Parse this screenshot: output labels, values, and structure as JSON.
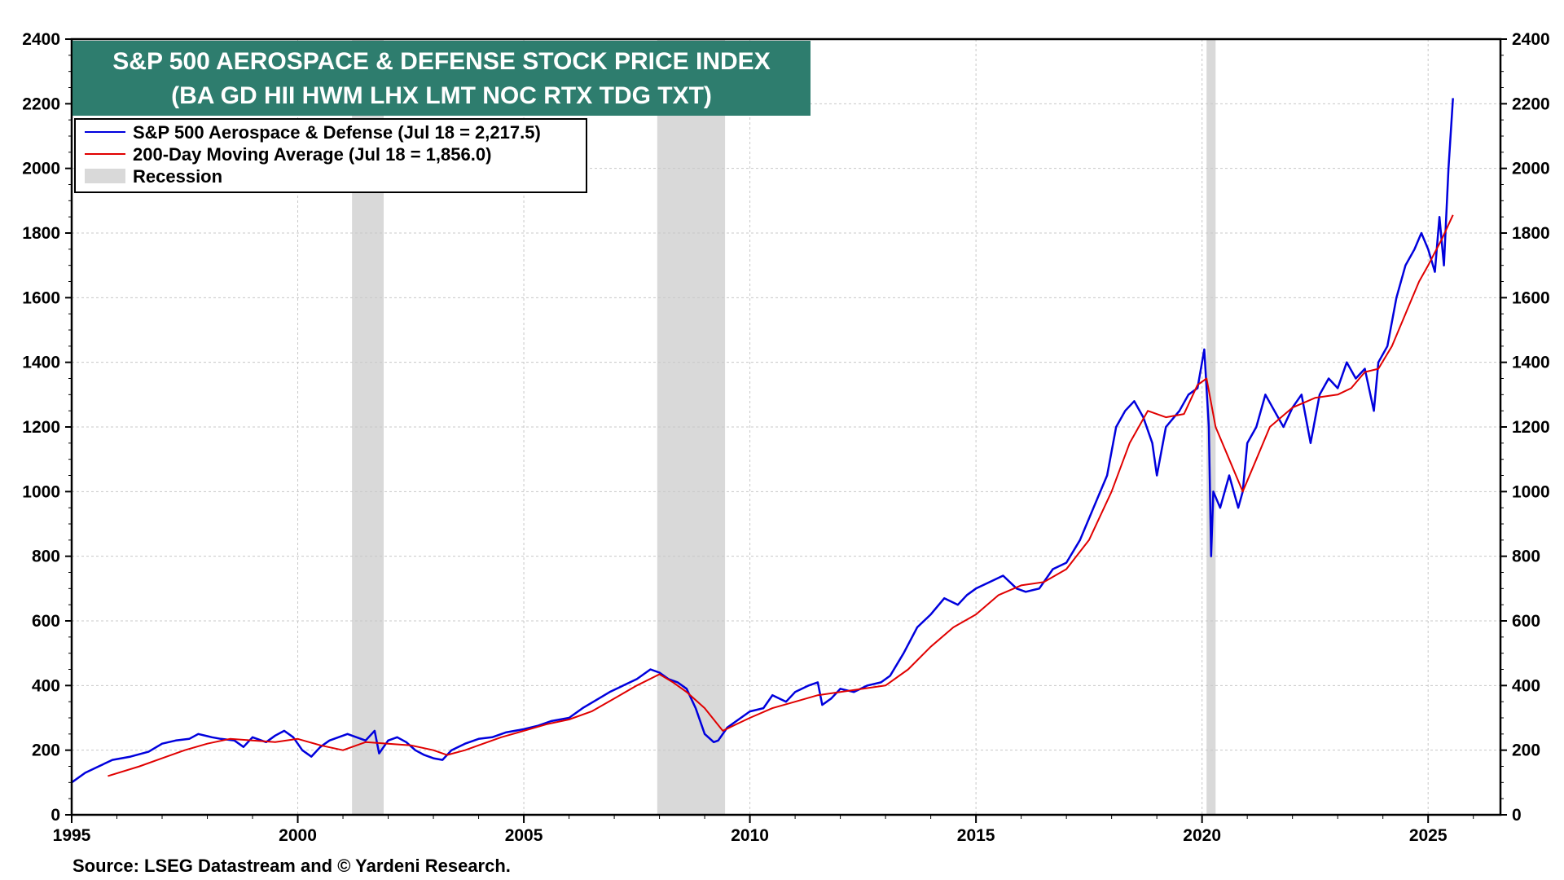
{
  "chart_data": {
    "type": "line",
    "title": "S&P 500 AEROSPACE & DEFENSE STOCK PRICE INDEX",
    "subtitle": "(BA GD HII HWM LHX LMT NOC RTX TDG TXT)",
    "source": "Source: LSEG Datastream and © Yardeni Research.",
    "xlim": [
      1995,
      2026.6
    ],
    "ylim": [
      0,
      2400
    ],
    "x_ticks": [
      "1995",
      "2000",
      "2005",
      "2010",
      "2015",
      "2020",
      "2025"
    ],
    "y_ticks": [
      "0",
      "200",
      "400",
      "600",
      "800",
      "1000",
      "1200",
      "1400",
      "1600",
      "1800",
      "2000",
      "2200",
      "2400"
    ],
    "y_axis_both_sides": true,
    "grid": true,
    "legend_position": "top-left",
    "colors": {
      "title_bg": "#2e7d6e",
      "price": "#0000dd",
      "ma": "#e00000",
      "recession": "#d9d9d9"
    },
    "legend": [
      {
        "label": "S&P 500 Aerospace & Defense (Jul 18 = 2,217.5)",
        "kind": "line",
        "color": "#0000dd"
      },
      {
        "label": "200-Day Moving Average (Jul 18 = 1,856.0)",
        "kind": "line",
        "color": "#e00000"
      },
      {
        "label": "Recession",
        "kind": "box",
        "color": "#d9d9d9"
      }
    ],
    "recessions": [
      {
        "start": 2001.2,
        "end": 2001.9
      },
      {
        "start": 2007.95,
        "end": 2009.45
      },
      {
        "start": 2020.1,
        "end": 2020.3
      }
    ],
    "series": [
      {
        "name": "S&P 500 Aerospace & Defense",
        "color": "#0000dd",
        "x": [
          1995.0,
          1995.3,
          1995.6,
          1995.9,
          1996.3,
          1996.7,
          1997.0,
          1997.3,
          1997.6,
          1997.8,
          1998.1,
          1998.3,
          1998.6,
          1998.8,
          1999.0,
          1999.3,
          1999.5,
          1999.7,
          1999.9,
          2000.1,
          2000.3,
          2000.5,
          2000.7,
          2000.9,
          2001.1,
          2001.3,
          2001.5,
          2001.7,
          2001.8,
          2002.0,
          2002.2,
          2002.4,
          2002.6,
          2002.8,
          2003.0,
          2003.2,
          2003.4,
          2003.7,
          2004.0,
          2004.3,
          2004.6,
          2005.0,
          2005.3,
          2005.6,
          2006.0,
          2006.3,
          2006.6,
          2006.9,
          2007.2,
          2007.5,
          2007.8,
          2008.0,
          2008.2,
          2008.4,
          2008.6,
          2008.8,
          2009.0,
          2009.2,
          2009.3,
          2009.5,
          2009.8,
          2010.0,
          2010.3,
          2010.5,
          2010.8,
          2011.0,
          2011.3,
          2011.5,
          2011.6,
          2011.8,
          2012.0,
          2012.3,
          2012.6,
          2012.9,
          2013.1,
          2013.4,
          2013.7,
          2014.0,
          2014.3,
          2014.6,
          2014.8,
          2015.0,
          2015.3,
          2015.6,
          2015.9,
          2016.1,
          2016.4,
          2016.7,
          2017.0,
          2017.3,
          2017.6,
          2017.9,
          2018.1,
          2018.3,
          2018.5,
          2018.7,
          2018.9,
          2019.0,
          2019.2,
          2019.5,
          2019.7,
          2019.9,
          2020.05,
          2020.15,
          2020.2,
          2020.25,
          2020.4,
          2020.6,
          2020.8,
          2020.9,
          2021.0,
          2021.2,
          2021.4,
          2021.6,
          2021.8,
          2022.0,
          2022.2,
          2022.4,
          2022.6,
          2022.8,
          2023.0,
          2023.2,
          2023.4,
          2023.6,
          2023.8,
          2023.9,
          2024.1,
          2024.3,
          2024.5,
          2024.7,
          2024.85,
          2025.0,
          2025.15,
          2025.25,
          2025.35,
          2025.45,
          2025.55
        ],
        "values": [
          100,
          130,
          150,
          170,
          180,
          195,
          220,
          230,
          235,
          250,
          240,
          235,
          230,
          210,
          240,
          225,
          245,
          260,
          240,
          200,
          180,
          210,
          230,
          240,
          250,
          240,
          230,
          260,
          190,
          230,
          240,
          225,
          200,
          185,
          175,
          170,
          200,
          220,
          235,
          240,
          255,
          265,
          275,
          290,
          300,
          330,
          355,
          380,
          400,
          420,
          450,
          440,
          420,
          410,
          390,
          330,
          250,
          225,
          230,
          270,
          300,
          320,
          330,
          370,
          350,
          380,
          400,
          410,
          340,
          360,
          390,
          380,
          400,
          410,
          430,
          500,
          580,
          620,
          670,
          650,
          680,
          700,
          720,
          740,
          700,
          690,
          700,
          760,
          780,
          850,
          950,
          1050,
          1200,
          1250,
          1280,
          1230,
          1150,
          1050,
          1200,
          1250,
          1300,
          1320,
          1440,
          1200,
          800,
          1000,
          950,
          1050,
          950,
          1000,
          1150,
          1200,
          1300,
          1250,
          1200,
          1260,
          1300,
          1150,
          1300,
          1350,
          1320,
          1400,
          1350,
          1380,
          1250,
          1400,
          1450,
          1600,
          1700,
          1750,
          1800,
          1750,
          1680,
          1850,
          1700,
          2000,
          2217.5
        ]
      },
      {
        "name": "200-Day Moving Average",
        "color": "#e00000",
        "x": [
          1995.8,
          1996.5,
          1997.0,
          1997.5,
          1998.0,
          1998.5,
          1999.0,
          1999.5,
          2000.0,
          2000.5,
          2001.0,
          2001.5,
          2002.0,
          2002.5,
          2003.0,
          2003.3,
          2003.7,
          2004.0,
          2004.5,
          2005.0,
          2005.5,
          2006.0,
          2006.5,
          2007.0,
          2007.5,
          2008.0,
          2008.3,
          2008.6,
          2009.0,
          2009.4,
          2009.7,
          2010.0,
          2010.5,
          2011.0,
          2011.5,
          2012.0,
          2012.5,
          2013.0,
          2013.5,
          2014.0,
          2014.5,
          2015.0,
          2015.5,
          2016.0,
          2016.5,
          2017.0,
          2017.5,
          2018.0,
          2018.4,
          2018.8,
          2019.2,
          2019.6,
          2019.9,
          2020.1,
          2020.3,
          2020.6,
          2020.9,
          2021.2,
          2021.5,
          2022.0,
          2022.5,
          2023.0,
          2023.3,
          2023.6,
          2023.9,
          2024.2,
          2024.5,
          2024.8,
          2025.0,
          2025.3,
          2025.55
        ],
        "values": [
          120,
          150,
          175,
          200,
          220,
          235,
          230,
          225,
          235,
          215,
          200,
          225,
          220,
          215,
          200,
          185,
          200,
          215,
          240,
          260,
          280,
          295,
          320,
          360,
          400,
          435,
          410,
          380,
          330,
          260,
          280,
          300,
          330,
          350,
          370,
          380,
          390,
          400,
          450,
          520,
          580,
          620,
          680,
          710,
          720,
          760,
          850,
          1000,
          1150,
          1250,
          1230,
          1240,
          1330,
          1350,
          1200,
          1100,
          1000,
          1100,
          1200,
          1260,
          1290,
          1300,
          1320,
          1370,
          1380,
          1450,
          1550,
          1650,
          1700,
          1780,
          1856.0
        ]
      }
    ]
  }
}
